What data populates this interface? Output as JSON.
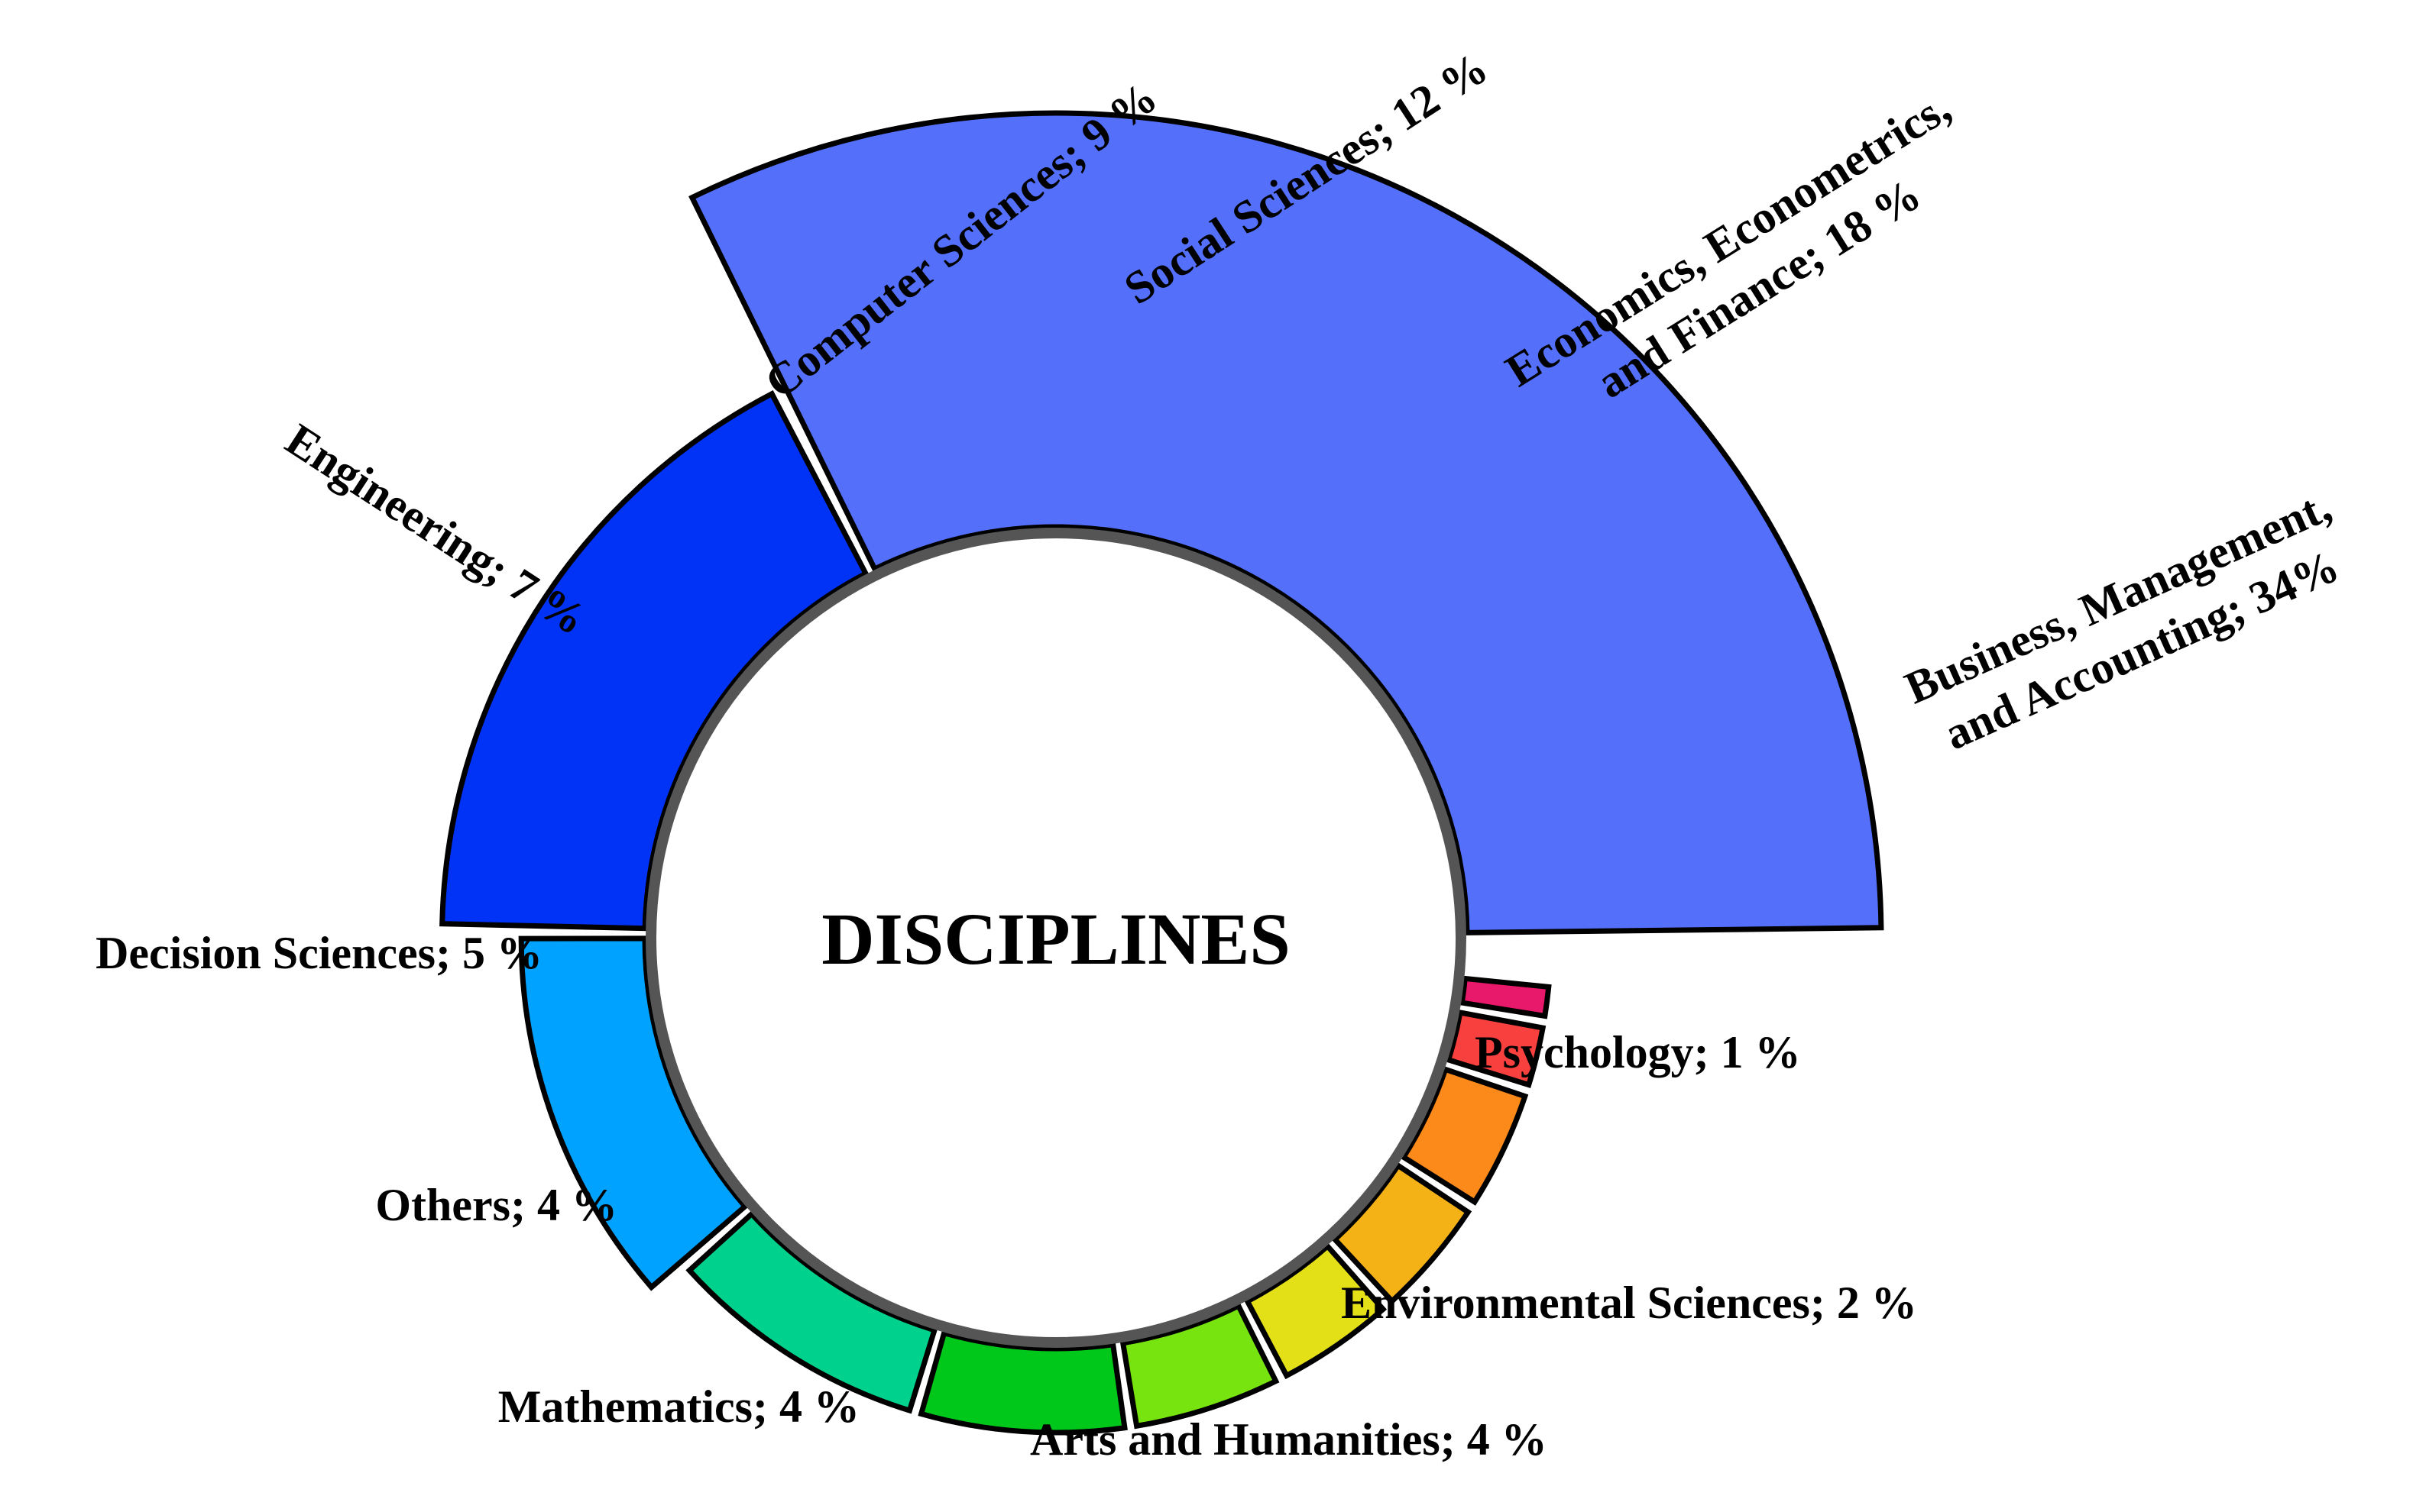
{
  "chart_data": {
    "type": "pie",
    "center_label": "DISCIPLINES",
    "slices": [
      {
        "name": "Business, Management, and Accounting",
        "label_lines": [
          "Business, Management,",
          "and Accounting; 34%"
        ],
        "value": 34,
        "color": "#5470fb"
      },
      {
        "name": "Economics, Econometrics, and Finance",
        "label_lines": [
          "Economics, Econometrics,",
          "and Finance; 18 %"
        ],
        "value": 18,
        "color": "#0033f5"
      },
      {
        "name": "Social Sciences",
        "label_lines": [
          "Social Sciences; 12 %"
        ],
        "value": 12,
        "color": "#00a2ff"
      },
      {
        "name": "Computer Sciences",
        "label_lines": [
          "Computer Sciences; 9 %"
        ],
        "value": 9,
        "color": "#00d18c"
      },
      {
        "name": "Engineering",
        "label_lines": [
          "Engineering; 7 %"
        ],
        "value": 7,
        "color": "#00c81a"
      },
      {
        "name": "Decision Sciences",
        "label_lines": [
          "Decision Sciences; 5 %"
        ],
        "value": 5,
        "color": "#77e40f"
      },
      {
        "name": "Others",
        "label_lines": [
          "Others; 4 %"
        ],
        "value": 4,
        "color": "#e4e018"
      },
      {
        "name": "Mathematics",
        "label_lines": [
          "Mathematics; 4 %"
        ],
        "value": 4,
        "color": "#f4b216"
      },
      {
        "name": "Arts and Humanities",
        "label_lines": [
          "Arts and Humanities; 4 %"
        ],
        "value": 4,
        "color": "#fc8a1a"
      },
      {
        "name": "Environmental Sciences",
        "label_lines": [
          "Environmental Sciences; 2 %"
        ],
        "value": 2,
        "color": "#f8403e"
      },
      {
        "name": "Psychology",
        "label_lines": [
          "Psychology; 1 %"
        ],
        "value": 1,
        "color": "#e8186a"
      }
    ]
  }
}
